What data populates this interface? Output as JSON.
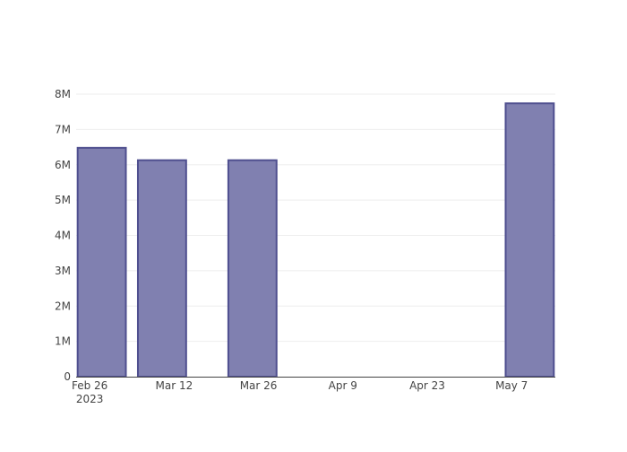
{
  "chart_data": {
    "type": "bar",
    "title": "",
    "xlabel": "",
    "ylabel": "",
    "x": [
      "2023-02-28",
      "2023-03-10",
      "2023-03-25",
      "2023-05-10"
    ],
    "values": [
      6480000,
      6130000,
      6130000,
      7740000
    ],
    "xlim": [
      "2023-02-23T18:00:00",
      "2023-05-14T06:00:00"
    ],
    "ylim": [
      0,
      8000000
    ],
    "x_ticks": [
      {
        "date": "2023-02-26",
        "label": "Feb 26",
        "sublabel": "2023"
      },
      {
        "date": "2023-03-12",
        "label": "Mar 12"
      },
      {
        "date": "2023-03-26",
        "label": "Mar 26"
      },
      {
        "date": "2023-04-09",
        "label": "Apr 9"
      },
      {
        "date": "2023-04-23",
        "label": "Apr 23"
      },
      {
        "date": "2023-05-07",
        "label": "May 7"
      }
    ],
    "y_ticks": [
      {
        "value": 0,
        "label": "0"
      },
      {
        "value": 1000000,
        "label": "1M"
      },
      {
        "value": 2000000,
        "label": "2M"
      },
      {
        "value": 3000000,
        "label": "3M"
      },
      {
        "value": 4000000,
        "label": "4M"
      },
      {
        "value": 5000000,
        "label": "5M"
      },
      {
        "value": 6000000,
        "label": "6M"
      },
      {
        "value": 7000000,
        "label": "7M"
      },
      {
        "value": 8000000,
        "label": "8M"
      }
    ],
    "grid": true,
    "colors": {
      "bar_fill": "#8080b0",
      "bar_outline": "#4f4f8f",
      "grid": "#eeeeee",
      "axis": "#444444"
    }
  }
}
